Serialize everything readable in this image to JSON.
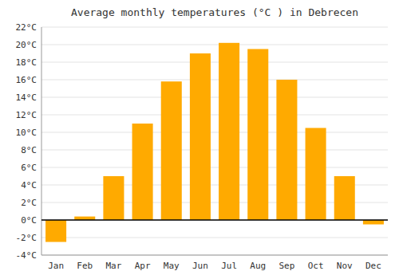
{
  "chart_data": {
    "type": "bar",
    "title": "Average monthly temperatures (°C ) in Debrecen",
    "categories": [
      "Jan",
      "Feb",
      "Mar",
      "Apr",
      "May",
      "Jun",
      "Jul",
      "Aug",
      "Sep",
      "Oct",
      "Nov",
      "Dec"
    ],
    "values": [
      -2.5,
      0.4,
      5.0,
      11.0,
      15.8,
      19.0,
      20.2,
      19.5,
      16.0,
      10.5,
      5.0,
      -0.5
    ],
    "color": "#FFAA00",
    "ylim": [
      -4,
      22
    ],
    "yticks": [
      {
        "value": -4,
        "label": "-4°C"
      },
      {
        "value": -2,
        "label": "-2°C"
      },
      {
        "value": 0,
        "label": "0°C"
      },
      {
        "value": 2,
        "label": "2°C"
      },
      {
        "value": 4,
        "label": "4°C"
      },
      {
        "value": 6,
        "label": "6°C"
      },
      {
        "value": 8,
        "label": "8°C"
      },
      {
        "value": 10,
        "label": "10°C"
      },
      {
        "value": 12,
        "label": "12°C"
      },
      {
        "value": 14,
        "label": "14°C"
      },
      {
        "value": 16,
        "label": "16°C"
      },
      {
        "value": 18,
        "label": "18°C"
      },
      {
        "value": 20,
        "label": "20°C"
      },
      {
        "value": 22,
        "label": "22°C"
      }
    ],
    "grid": true
  }
}
